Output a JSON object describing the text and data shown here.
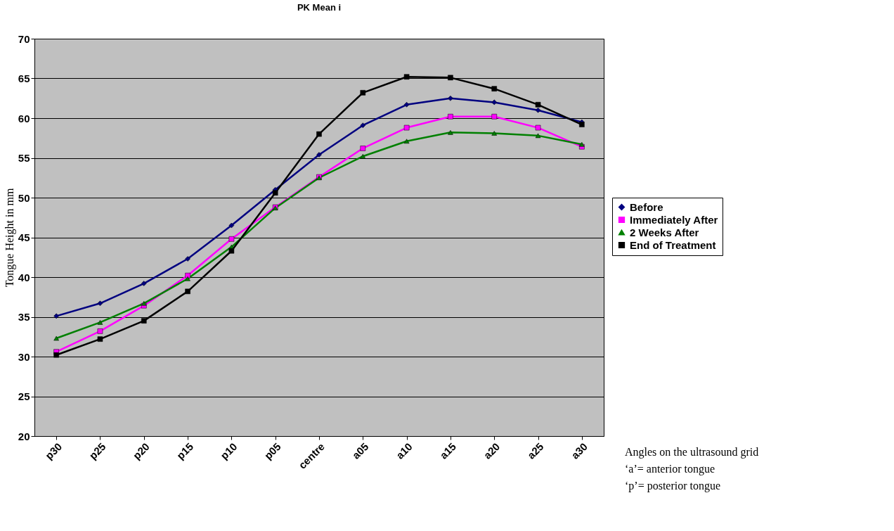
{
  "chart_data": {
    "type": "line",
    "title": "PK Mean i",
    "ylabel": "Tongue Height in mm",
    "categories": [
      "p30",
      "p25",
      "p20",
      "p15",
      "p10",
      "p05",
      "centre",
      "a05",
      "a10",
      "a15",
      "a20",
      "a25",
      "a30"
    ],
    "series": [
      {
        "name": "Before",
        "color": "#000080",
        "marker": "diamond",
        "values": [
          35.1,
          36.7,
          39.2,
          42.3,
          46.5,
          51.0,
          55.4,
          59.1,
          61.7,
          62.5,
          62.0,
          61.0,
          59.5
        ]
      },
      {
        "name": "Immediately After",
        "color": "#ff00ff",
        "marker": "square",
        "values": [
          30.6,
          33.2,
          36.4,
          40.2,
          44.8,
          48.8,
          52.6,
          56.2,
          58.8,
          60.2,
          60.2,
          58.8,
          56.4
        ]
      },
      {
        "name": "2 Weeks After",
        "color": "#008000",
        "marker": "triangle",
        "values": [
          32.3,
          34.3,
          36.7,
          39.8,
          43.8,
          48.7,
          52.5,
          55.2,
          57.1,
          58.2,
          58.1,
          57.8,
          56.7
        ]
      },
      {
        "name": "End of Treatment",
        "color": "#000000",
        "marker": "square",
        "values": [
          30.2,
          32.2,
          34.5,
          38.2,
          43.3,
          50.6,
          58.0,
          63.2,
          65.2,
          65.1,
          63.7,
          61.7,
          59.2
        ]
      }
    ],
    "ylim": [
      20,
      70
    ],
    "yticks": [
      20,
      25,
      30,
      35,
      40,
      45,
      50,
      55,
      60,
      65,
      70
    ],
    "grid": "y",
    "legend": "right",
    "line_style": "solid",
    "annotations": [
      "Angles on the ultrasound grid",
      "‘a’= anterior tongue",
      "‘p’= posterior tongue"
    ]
  }
}
